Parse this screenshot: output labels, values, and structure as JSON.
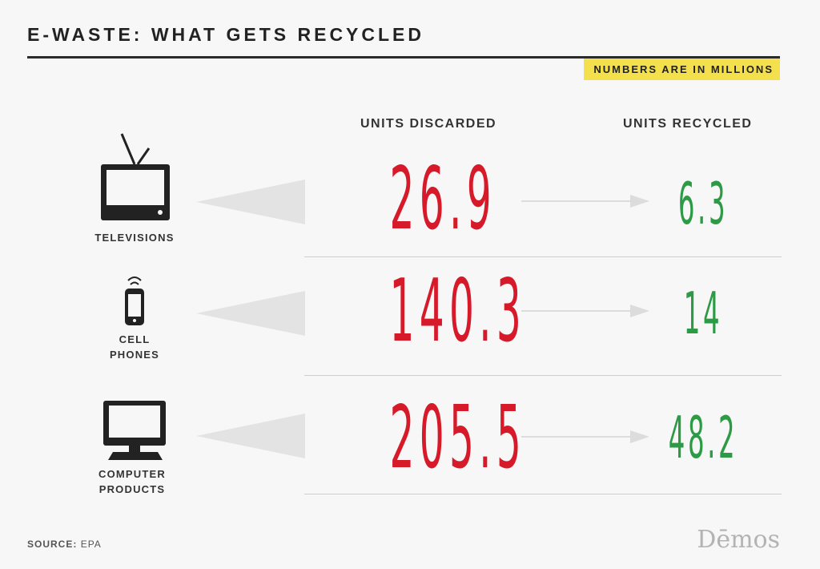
{
  "header": {
    "title": "E-WASTE: WHAT GETS RECYCLED",
    "badge": "NUMBERS ARE IN MILLIONS"
  },
  "columns": {
    "discarded": "UNITS DISCARDED",
    "recycled": "UNITS RECYCLED"
  },
  "rows": [
    {
      "label_line1": "TELEVISIONS",
      "label_line2": "",
      "discarded": "26.9",
      "recycled": "6.3",
      "icon": "television-icon"
    },
    {
      "label_line1": "CELL",
      "label_line2": "PHONES",
      "discarded": "140.3",
      "recycled": "14",
      "icon": "cell-phone-icon"
    },
    {
      "label_line1": "COMPUTER",
      "label_line2": "PRODUCTS",
      "discarded": "205.5",
      "recycled": "48.2",
      "icon": "computer-icon"
    }
  ],
  "footer": {
    "source_label": "SOURCE:",
    "source_value": "EPA",
    "logo": "Dēmos"
  },
  "colors": {
    "discarded": "#d61a2a",
    "recycled": "#2d9b46",
    "badge": "#f4e04d"
  },
  "chart_data": {
    "type": "table",
    "title": "E-WASTE: WHAT GETS RECYCLED",
    "subtitle": "NUMBERS ARE IN MILLIONS",
    "categories": [
      "TELEVISIONS",
      "CELL PHONES",
      "COMPUTER PRODUCTS"
    ],
    "series": [
      {
        "name": "UNITS DISCARDED",
        "values": [
          26.9,
          140.3,
          205.5
        ]
      },
      {
        "name": "UNITS RECYCLED",
        "values": [
          6.3,
          14,
          48.2
        ]
      }
    ]
  }
}
